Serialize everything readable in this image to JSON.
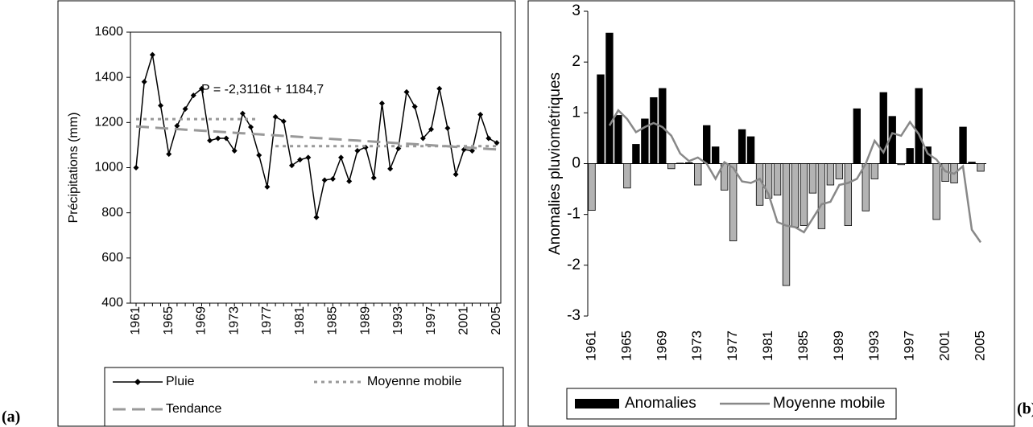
{
  "chart_data": [
    {
      "type": "line",
      "panel_label": "(a)",
      "ylabel": "Précipitations (mm)",
      "annotation": "P = -2,3116t + 1184,7",
      "categories": [
        "1961",
        null,
        null,
        null,
        "1965",
        null,
        null,
        null,
        "1969",
        null,
        null,
        null,
        "1973",
        null,
        null,
        null,
        "1977",
        null,
        null,
        null,
        "1981",
        null,
        null,
        null,
        "1985",
        null,
        null,
        null,
        "1989",
        null,
        null,
        null,
        "1993",
        null,
        null,
        null,
        "1997",
        null,
        null,
        null,
        "2001",
        null,
        null,
        null,
        "2005"
      ],
      "ylim": [
        400,
        1600
      ],
      "yticks": [
        400,
        600,
        800,
        1000,
        1200,
        1400,
        1600
      ],
      "series": [
        {
          "name": "Pluie",
          "color": "#000000",
          "dash": "solid",
          "marker": "diamond",
          "values": [
            1000,
            1380,
            1500,
            1275,
            1060,
            1185,
            1260,
            1320,
            1350,
            1120,
            1130,
            1130,
            1075,
            1240,
            1180,
            1055,
            915,
            1225,
            1205,
            1010,
            1035,
            1045,
            780,
            945,
            950,
            1045,
            940,
            1075,
            1090,
            955,
            1285,
            995,
            1085,
            1335,
            1270,
            1130,
            1170,
            1350,
            1175,
            970,
            1080,
            1075,
            1235,
            1130,
            1110
          ]
        },
        {
          "name": "Moyenne mobile",
          "color": "#999999",
          "dash": "dotted",
          "values": [
            1215,
            1215,
            1215,
            1215,
            1215,
            1215,
            1215,
            1215,
            1215,
            1215,
            1215,
            1215,
            1215,
            1215,
            1215,
            1215,
            null,
            1095,
            1095,
            1095,
            1095,
            1095,
            1095,
            1095,
            1095,
            1095,
            1095,
            1095,
            1095,
            1095,
            1095,
            1095,
            1095,
            1095,
            1095,
            1095,
            1095,
            1095,
            1095,
            1095,
            1095,
            1095,
            1095,
            1095,
            1095
          ]
        },
        {
          "name": "Tendance",
          "color": "#999999",
          "dash": "dashed",
          "values": [
            1182.4,
            1180.1,
            1177.8,
            1175.5,
            1173.1,
            1170.8,
            1168.5,
            1166.2,
            1163.9,
            1161.6,
            1159.3,
            1157.0,
            1154.6,
            1152.3,
            1150.0,
            1147.7,
            1145.4,
            1143.1,
            1140.8,
            1138.5,
            1136.2,
            1133.8,
            1131.5,
            1129.2,
            1126.9,
            1124.6,
            1122.3,
            1120.0,
            1117.7,
            1115.4,
            1113.1,
            1110.7,
            1108.4,
            1106.1,
            1103.8,
            1101.5,
            1099.2,
            1096.9,
            1094.6,
            1092.2,
            1089.9,
            1087.6,
            1085.3,
            1083.0,
            1080.7
          ]
        }
      ]
    },
    {
      "type": "bar",
      "panel_label": "(b)",
      "ylabel": "Anomalies pluviométriques",
      "categories": [
        "1961",
        null,
        null,
        null,
        "1965",
        null,
        null,
        null,
        "1969",
        null,
        null,
        null,
        "1973",
        null,
        null,
        null,
        "1977",
        null,
        null,
        null,
        "1981",
        null,
        null,
        null,
        "1985",
        null,
        null,
        null,
        "1989",
        null,
        null,
        null,
        "1993",
        null,
        null,
        null,
        "1997",
        null,
        null,
        null,
        "2001",
        null,
        null,
        null,
        "2005"
      ],
      "ylim": [
        -3,
        3
      ],
      "yticks": [
        -3,
        -2,
        -1,
        0,
        1,
        2,
        3
      ],
      "series": [
        {
          "name": "Anomalies",
          "type": "bar",
          "color": "#000000",
          "negative_color": "#b3b3b3",
          "values": [
            -0.92,
            1.75,
            2.57,
            0.95,
            -0.48,
            0.38,
            0.88,
            1.3,
            1.48,
            -0.1,
            0.01,
            0.02,
            -0.42,
            0.75,
            0.33,
            -0.52,
            -1.52,
            0.67,
            0.53,
            -0.82,
            -0.68,
            -0.62,
            -2.4,
            -1.25,
            -1.22,
            -0.58,
            -1.28,
            -0.42,
            -0.3,
            -1.22,
            1.08,
            -0.93,
            -0.3,
            1.4,
            0.93,
            -0.02,
            0.3,
            1.48,
            0.33,
            -1.1,
            -0.35,
            -0.38,
            0.72,
            0.03,
            -0.15
          ]
        },
        {
          "name": "Moyenne mobile",
          "type": "line",
          "color": "#888888",
          "values": [
            null,
            null,
            0.75,
            1.05,
            0.88,
            0.62,
            0.72,
            0.8,
            0.72,
            0.55,
            0.2,
            0.05,
            0.12,
            0.0,
            -0.3,
            0.03,
            -0.08,
            -0.35,
            -0.38,
            -0.3,
            -0.6,
            -1.15,
            -1.22,
            -1.25,
            -1.35,
            -1.08,
            -0.8,
            -0.75,
            -0.42,
            -0.38,
            -0.3,
            0.0,
            0.45,
            0.22,
            0.6,
            0.55,
            0.82,
            0.58,
            0.2,
            0.08,
            -0.15,
            -0.2,
            -0.05,
            -1.3,
            -1.55
          ]
        }
      ]
    }
  ]
}
